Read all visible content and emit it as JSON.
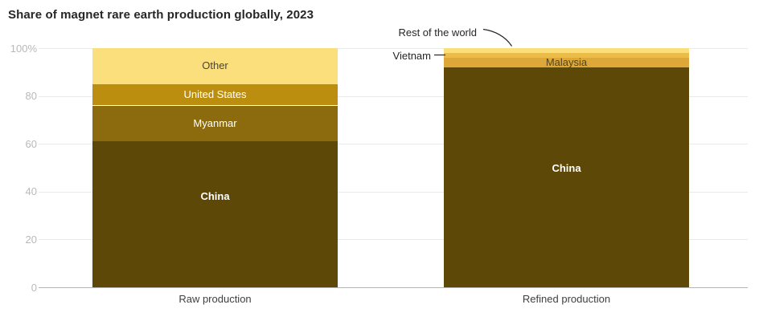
{
  "title": "Share of magnet rare earth production globally, 2023",
  "annotations": {
    "rest_of_world": "Rest of the world",
    "vietnam": "Vietnam"
  },
  "x_axis": {
    "labels": [
      "Raw production",
      "Refined production"
    ]
  },
  "y_axis": {
    "ticks": [
      {
        "value": 100,
        "label": "100%"
      },
      {
        "value": 80,
        "label": "80"
      },
      {
        "value": 60,
        "label": "60"
      },
      {
        "value": 40,
        "label": "40"
      },
      {
        "value": 20,
        "label": "20"
      },
      {
        "value": 0,
        "label": "0"
      }
    ]
  },
  "colors": {
    "china": "#5d4808",
    "myanmar": "#8c6b0f",
    "united_states": "#bc8e10",
    "malaysia": "#dda838",
    "vietnam": "#ebbc48",
    "other": "#fbdf7d",
    "rest_of_world": "#fbdf7d",
    "title_text": "#262626",
    "axis_tick_text": "#b9b9b9",
    "axis_label_text": "#404040",
    "gridline": "#e9e9e9",
    "zero_line": "#b5b5b5",
    "annotation_line": "#262626"
  },
  "chart_data": {
    "type": "bar",
    "variant": "stacked_percentage_column",
    "title": "Share of magnet rare earth production globally, 2023",
    "unit": "%",
    "ylim": [
      0,
      100
    ],
    "grid": true,
    "legend_position": "labels inside segments; small segments use leader-line annotations",
    "categories": [
      "Raw production",
      "Refined production"
    ],
    "series_bottom_to_top": [
      {
        "name": "China",
        "values": [
          61,
          92
        ],
        "color": "#5d4808",
        "text_color": "#ffffff",
        "bold": true,
        "label_inside": true,
        "label_pos": [
          0.38,
          0.46
        ]
      },
      {
        "name": "Myanmar",
        "values": [
          15,
          0
        ],
        "color": "#8c6b0f",
        "text_color": "#ffffff",
        "bold": false,
        "label_inside": true,
        "label_pos": [
          0.5,
          0.5
        ]
      },
      {
        "name": "Malaysia",
        "values": [
          0,
          4
        ],
        "color": "#dda838",
        "text_color": "#54431d",
        "bold": false,
        "label_inside": true,
        "label_pos": [
          0.5,
          0.5
        ]
      },
      {
        "name": "Vietnam",
        "values": [
          0,
          2
        ],
        "color": "#ebbc48",
        "text_color": "#262626",
        "bold": false,
        "label_inside": false,
        "label_pos": [
          0.5,
          0.5
        ]
      },
      {
        "name": "United States",
        "values": [
          9,
          0
        ],
        "color": "#bc8e10",
        "text_color": "#ffffff",
        "bold": false,
        "label_inside": true,
        "label_pos": [
          0.5,
          0.5
        ]
      },
      {
        "name": "Other",
        "values": [
          15,
          0
        ],
        "color": "#fbdf7d",
        "text_color": "#4a4434",
        "bold": false,
        "label_inside": true,
        "label_pos": [
          0.5,
          0.5
        ]
      },
      {
        "name": "Rest of the world",
        "values": [
          0,
          2
        ],
        "color": "#fbdf7d",
        "text_color": "#262626",
        "bold": false,
        "label_inside": false,
        "label_pos": [
          0.5,
          0.5
        ]
      }
    ]
  }
}
